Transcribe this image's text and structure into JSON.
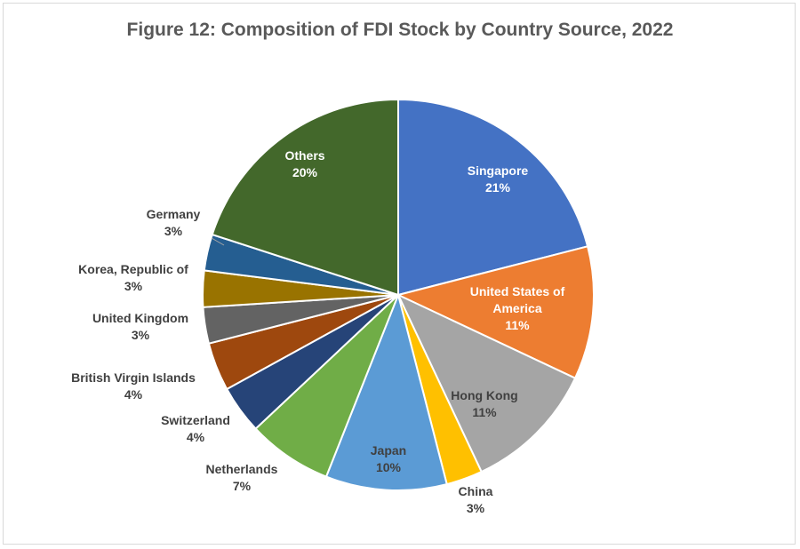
{
  "chart_data": {
    "type": "pie",
    "title": "Figure 12: Composition of FDI Stock by Country Source, 2022",
    "unit": "%",
    "slices": [
      {
        "label": "Singapore",
        "value": 21,
        "color": "#4472C4",
        "text": "21%"
      },
      {
        "label": "United States of America",
        "value": 11,
        "color": "#ED7D31",
        "text": "11%"
      },
      {
        "label": "Hong Kong",
        "value": 11,
        "color": "#A5A5A5",
        "text": "11%"
      },
      {
        "label": "China",
        "value": 3,
        "color": "#FFC000",
        "text": "3%"
      },
      {
        "label": "Japan",
        "value": 10,
        "color": "#5B9BD5",
        "text": "10%"
      },
      {
        "label": "Netherlands",
        "value": 7,
        "color": "#70AD47",
        "text": "7%"
      },
      {
        "label": "Switzerland",
        "value": 4,
        "color": "#264478",
        "text": "4%"
      },
      {
        "label": "British Virgin Islands",
        "value": 4,
        "color": "#9E480E",
        "text": "4%"
      },
      {
        "label": "United Kingdom",
        "value": 3,
        "color": "#636363",
        "text": "3%"
      },
      {
        "label": "Korea, Republic of",
        "value": 3,
        "color": "#997300",
        "text": "3%"
      },
      {
        "label": "Germany",
        "value": 3,
        "color": "#255E91",
        "text": "3%"
      },
      {
        "label": "Others",
        "value": 20,
        "color": "#43682B",
        "text": "20%"
      }
    ],
    "start_angle": "12 o'clock",
    "direction": "clockwise"
  }
}
